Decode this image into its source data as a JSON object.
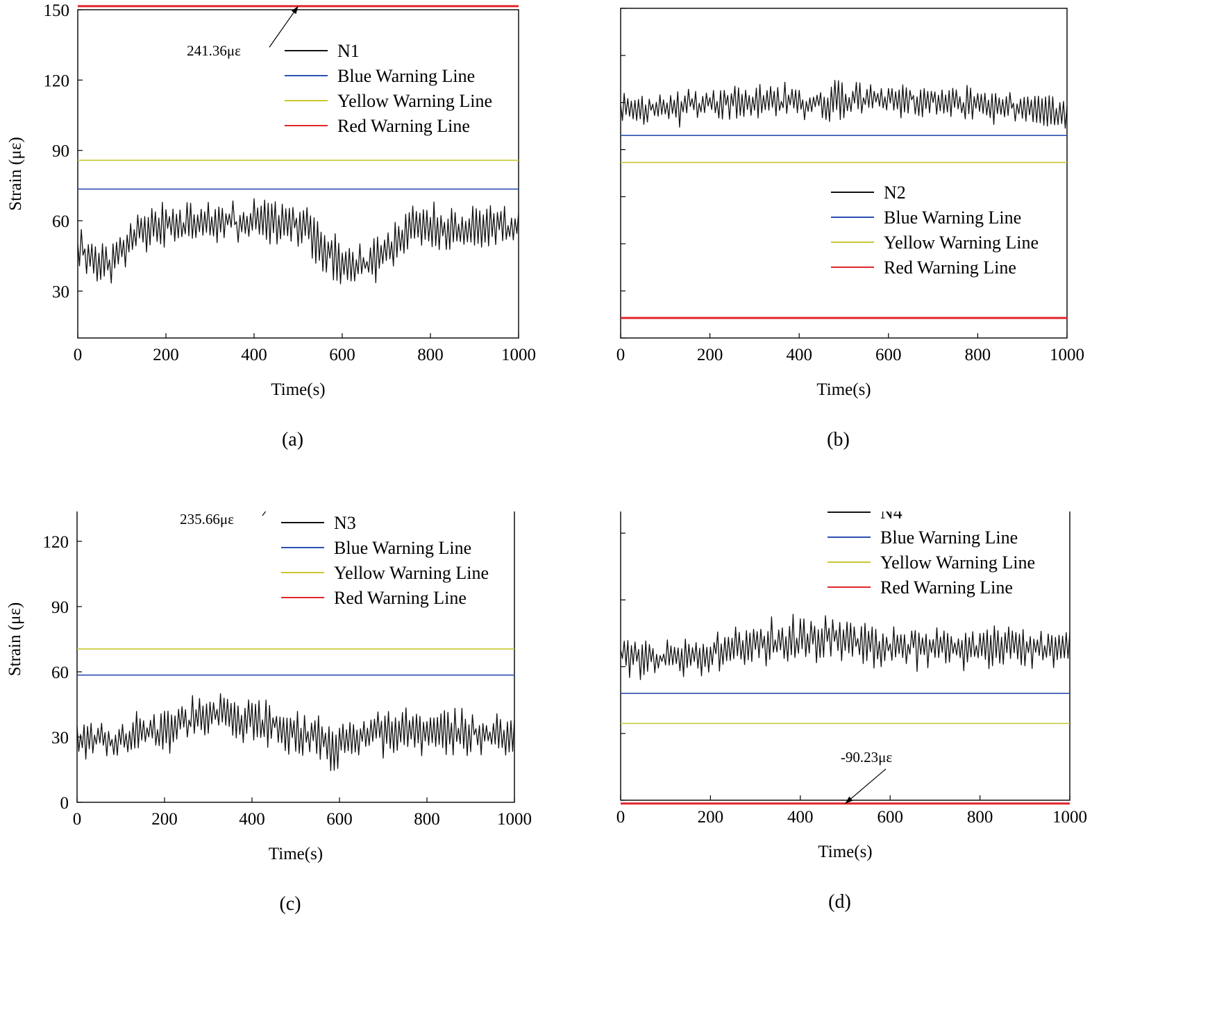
{
  "chart_data": [
    {
      "type": "line",
      "panel_label": "(a)",
      "xlabel": "Time(s)",
      "ylabel": "Strain (με)",
      "xlim": [
        0,
        1000
      ],
      "ylim": [
        10,
        150
      ],
      "xticks": [
        0,
        200,
        400,
        600,
        800,
        1000
      ],
      "yticks": [
        30,
        60,
        90,
        120,
        150
      ],
      "legend": {
        "position": "top-right",
        "entries": [
          "N1",
          "Blue Warning Line",
          "Yellow Warning Line",
          "Red Warning Line"
        ]
      },
      "annotation": {
        "text": "241.36με",
        "x": 500,
        "y": 151.5
      },
      "warning_lines": [
        {
          "name": "Blue Warning Line",
          "value": 73.5,
          "color": "#2b4fb3"
        },
        {
          "name": "Yellow Warning Line",
          "value": 85.8,
          "color": "#c8c832"
        },
        {
          "name": "Red Warning Line",
          "value": 151.5,
          "color": "#e0262a"
        }
      ],
      "series": [
        {
          "name": "N1",
          "color": "#111111",
          "seed": 11,
          "profile_x": [
            0,
            70,
            150,
            300,
            450,
            520,
            560,
            620,
            680,
            760,
            900,
            1000
          ],
          "profile_y": [
            48,
            42,
            58,
            60,
            59,
            58,
            46,
            40,
            44,
            57,
            58,
            58
          ],
          "amplitude": 9,
          "min": 32,
          "max": 70
        }
      ]
    },
    {
      "type": "line",
      "panel_label": "(b)",
      "xlabel": "Time(s)",
      "ylabel": "Strain (με)",
      "xlim": [
        0,
        1000
      ],
      "ylim": [
        -120,
        20
      ],
      "xticks": [
        0,
        200,
        400,
        600,
        800,
        1000
      ],
      "yticks": [
        -120,
        -100,
        -80,
        -60,
        -40,
        -20,
        0,
        20
      ],
      "legend": {
        "position": "center-right",
        "entries": [
          "N2",
          "Blue Warning Line",
          "Yellow Warning Line",
          "Red Warning Line"
        ]
      },
      "warning_lines": [
        {
          "name": "Blue Warning Line",
          "value": -34,
          "color": "#2b4fb3"
        },
        {
          "name": "Yellow Warning Line",
          "value": -45.5,
          "color": "#c8c832"
        },
        {
          "name": "Red Warning Line",
          "value": -111.5,
          "color": "#e0262a"
        }
      ],
      "series": [
        {
          "name": "N2",
          "color": "#111111",
          "seed": 23,
          "profile_x": [
            0,
            200,
            400,
            600,
            800,
            1000
          ],
          "profile_y": [
            -23,
            -21,
            -20,
            -18,
            -21,
            -24
          ],
          "amplitude": 7,
          "min": -34,
          "max": -8
        }
      ]
    },
    {
      "type": "line",
      "panel_label": "(c)",
      "xlabel": "Time(s)",
      "ylabel": "Strain (με)",
      "xlim": [
        0,
        1000
      ],
      "ylim": [
        0,
        150
      ],
      "xticks": [
        0,
        200,
        400,
        600,
        800,
        1000
      ],
      "yticks": [
        0,
        30,
        60,
        90,
        120,
        150
      ],
      "legend": {
        "position": "top-right",
        "entries": [
          "N3",
          "Blue Warning Line",
          "Yellow Warning Line",
          "Red Warning Line"
        ]
      },
      "annotation": {
        "text": "235.66με",
        "x": 500,
        "y": 152
      },
      "warning_lines": [
        {
          "name": "Blue Warning Line",
          "value": 58.5,
          "color": "#2b4fb3"
        },
        {
          "name": "Yellow Warning Line",
          "value": 70.5,
          "color": "#c8c832"
        },
        {
          "name": "Red Warning Line",
          "value": 152,
          "color": "#e0262a"
        }
      ],
      "series": [
        {
          "name": "N3",
          "color": "#111111",
          "seed": 37,
          "profile_x": [
            0,
            80,
            200,
            300,
            400,
            500,
            580,
            700,
            850,
            1000
          ],
          "profile_y": [
            30,
            27,
            34,
            40,
            38,
            33,
            26,
            32,
            32,
            32
          ],
          "amplitude": 10,
          "min": 14,
          "max": 59
        }
      ]
    },
    {
      "type": "line",
      "panel_label": "(d)",
      "xlabel": "Time(s)",
      "ylabel": "Strain (με)",
      "xlim": [
        0,
        1000
      ],
      "ylim": [
        -60,
        40
      ],
      "xticks": [
        0,
        200,
        400,
        600,
        800,
        1000
      ],
      "yticks": [
        -60,
        -40,
        -20,
        0,
        20,
        40
      ],
      "legend": {
        "position": "top-right",
        "entries": [
          "N4",
          "Blue Warning Line",
          "Yellow Warning Line",
          "Red Warning Line"
        ]
      },
      "annotation": {
        "text": "-90.23με",
        "x": 500,
        "y": -61
      },
      "warning_lines": [
        {
          "name": "Blue Warning Line",
          "value": -28,
          "color": "#2b4fb3"
        },
        {
          "name": "Yellow Warning Line",
          "value": -37,
          "color": "#c8c832"
        },
        {
          "name": "Red Warning Line",
          "value": -61,
          "color": "#e0262a"
        }
      ],
      "series": [
        {
          "name": "N4",
          "color": "#111111",
          "seed": 53,
          "profile_x": [
            0,
            150,
            300,
            450,
            600,
            800,
            1000
          ],
          "profile_y": [
            -16,
            -18,
            -13,
            -11,
            -14,
            -15,
            -14
          ],
          "amplitude": 6,
          "min": -29,
          "max": -4
        }
      ]
    }
  ]
}
